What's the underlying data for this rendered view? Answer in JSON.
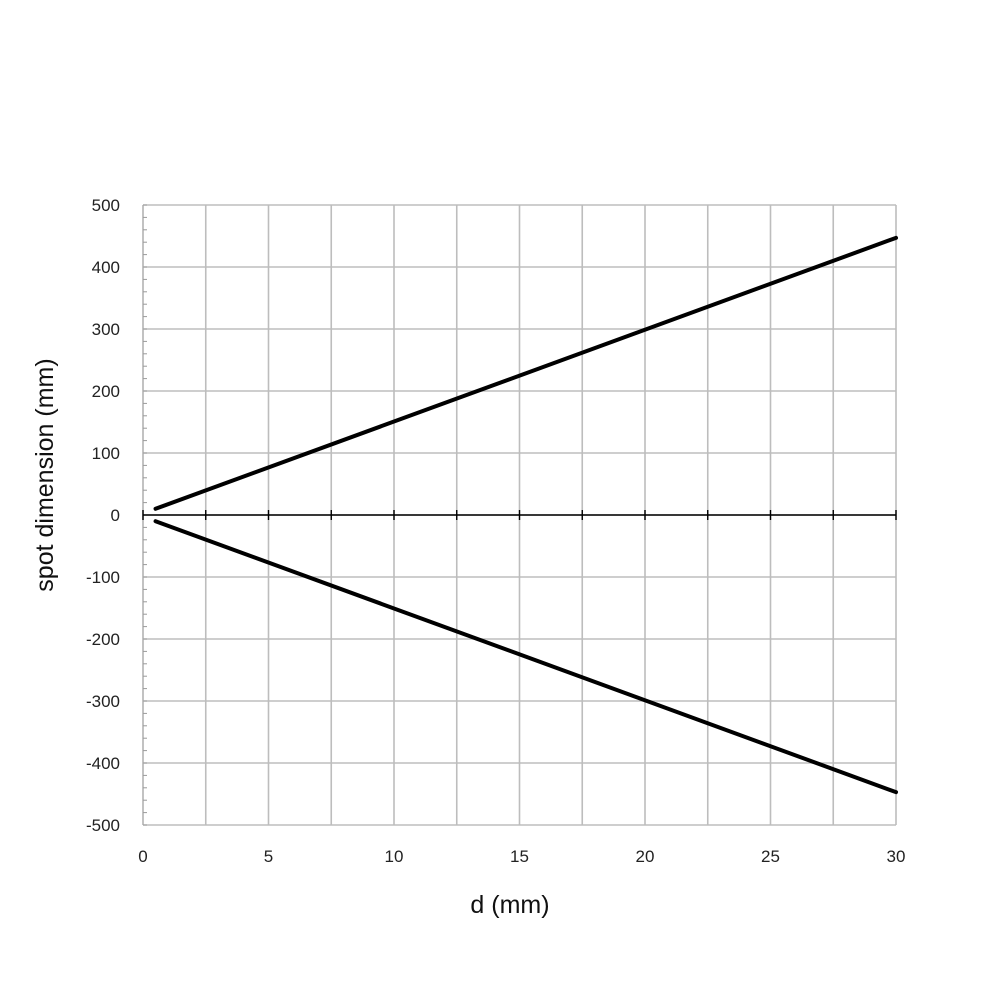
{
  "chart_data": {
    "type": "line",
    "title": "",
    "xlabel": "d (mm)",
    "ylabel": "spot dimension (mm)",
    "xlim": [
      0,
      30
    ],
    "ylim": [
      -500,
      500
    ],
    "x_ticks": [
      0,
      5,
      10,
      15,
      20,
      25,
      30
    ],
    "y_ticks": [
      500,
      400,
      300,
      200,
      100,
      0,
      -100,
      -200,
      -300,
      -400,
      -500
    ],
    "x_tick_labels": [
      "0",
      "5",
      "10",
      "15",
      "20",
      "25",
      "30"
    ],
    "y_tick_labels": [
      "500",
      "400",
      "300",
      "200",
      "100",
      "0",
      "-100",
      "-200",
      "-300",
      "-400",
      "-500"
    ],
    "grid": true,
    "legend": "none",
    "series": [
      {
        "x": [
          0.5,
          30
        ],
        "y": [
          10,
          447
        ],
        "color": "#000000"
      },
      {
        "x": [
          0.5,
          30
        ],
        "y": [
          -10,
          -447
        ],
        "color": "#000000"
      }
    ]
  },
  "colors": {
    "grid": "#bdbdbd",
    "axis": "#000000",
    "line": "#000000"
  }
}
